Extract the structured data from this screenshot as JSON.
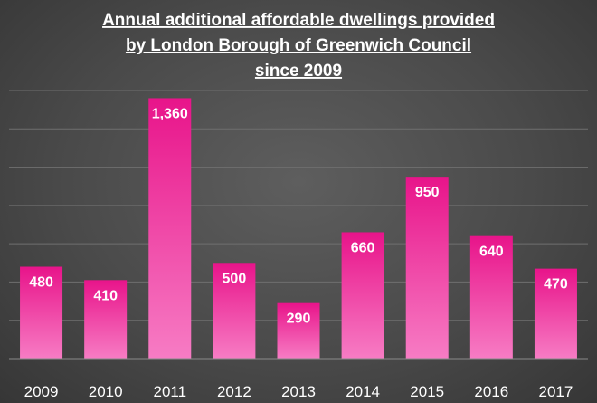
{
  "chart_data": {
    "type": "bar",
    "title_lines": [
      "Annual additional affordable dwellings provided",
      "by London Borough of Greenwich Council",
      "since 2009"
    ],
    "categories": [
      "2009",
      "2010",
      "2011",
      "2012",
      "2013",
      "2014",
      "2015",
      "2016",
      "2017"
    ],
    "values": [
      480,
      410,
      1360,
      500,
      290,
      660,
      950,
      640,
      470
    ],
    "value_labels": [
      "480",
      "410",
      "1,360",
      "500",
      "290",
      "660",
      "950",
      "640",
      "470"
    ],
    "xlabel": "",
    "ylabel": "",
    "ylim": [
      0,
      1400
    ],
    "grid": true,
    "legend": "none",
    "colors": {
      "bar_top": "#e8148a",
      "bar_bottom": "#f77cc4",
      "background": "#4a4a4a"
    }
  }
}
